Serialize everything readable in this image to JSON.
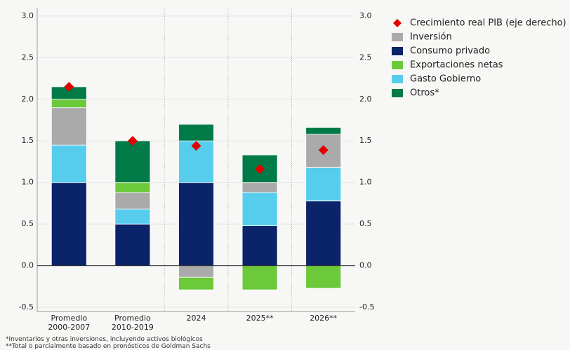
{
  "chart_data": {
    "type": "bar",
    "stacked": true,
    "categories": [
      "Promedio 2000-2007",
      "Promedio 2010-2019",
      "2024",
      "2025**",
      "2026**"
    ],
    "series": [
      {
        "name": "Crecimiento real PIB (eje derecho)",
        "type": "scatter",
        "axis": "y2",
        "color": "#e00000",
        "values": [
          2.15,
          1.5,
          1.44,
          1.16,
          1.39
        ]
      },
      {
        "name": "Inversión",
        "color": "#aaaaaa",
        "values": [
          0.45,
          0.2,
          -0.14,
          0.12,
          0.4
        ]
      },
      {
        "name": "Consumo privado",
        "color": "#0a2369",
        "values": [
          1.0,
          0.5,
          1.0,
          0.48,
          0.78
        ]
      },
      {
        "name": "Exportaciones netas",
        "color": "#6cc93a",
        "values": [
          0.1,
          0.12,
          -0.15,
          -0.29,
          -0.27
        ]
      },
      {
        "name": "Gasto Gobierno",
        "color": "#57cdee",
        "values": [
          0.45,
          0.18,
          0.5,
          0.4,
          0.4
        ]
      },
      {
        "name": "Otros*",
        "color": "#007a46",
        "values": [
          0.15,
          0.5,
          0.2,
          0.33,
          0.08
        ]
      }
    ],
    "ylim": [
      -0.55,
      3.1
    ],
    "yticks": [
      {
        "value": -0.5,
        "label": "-0.5"
      },
      {
        "value": 0,
        "label": "0.0"
      },
      {
        "value": 0.5,
        "label": "0.5"
      },
      {
        "value": 1,
        "label": "1.0"
      },
      {
        "value": 1.5,
        "label": "1.5"
      },
      {
        "value": 2,
        "label": "2.0"
      },
      {
        "value": 2.5,
        "label": "2.5"
      },
      {
        "value": 3,
        "label": "3.0"
      }
    ],
    "y2lim": [
      -0.55,
      3.1
    ],
    "y2ticks": [
      {
        "value": -0.5,
        "label": "-0.5"
      },
      {
        "value": 0,
        "label": "0.0"
      },
      {
        "value": 0.5,
        "label": "0.5"
      },
      {
        "value": 1,
        "label": "1.0"
      },
      {
        "value": 1.5,
        "label": "1.5"
      },
      {
        "value": 2,
        "label": "2.0"
      },
      {
        "value": 2.5,
        "label": "2.5"
      },
      {
        "value": 3,
        "label": "3.0"
      }
    ],
    "grid": true,
    "legend": "right",
    "notes": [
      "*Inventarios y otras inversiones, incluyendo activos biológicos",
      "**Total o parcialmente basado en pronósticos de Goldman Sachs"
    ]
  }
}
